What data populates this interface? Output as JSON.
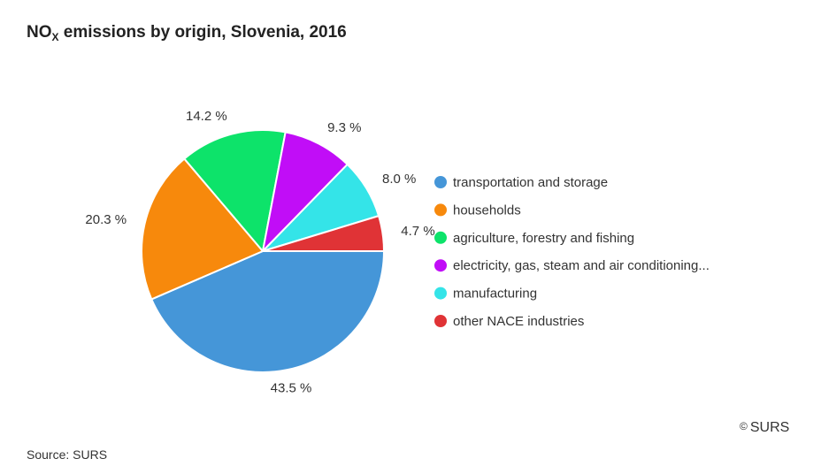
{
  "chart_data": {
    "type": "pie",
    "title": {
      "main": "NO",
      "sub": "X",
      "rest": " emissions by origin, Slovenia, 2016"
    },
    "slices": [
      {
        "label": "transportation and storage",
        "value": 43.5,
        "display": "43.5 %",
        "color": "#4596d8"
      },
      {
        "label": "households",
        "value": 20.3,
        "display": "20.3 %",
        "color": "#f7890c"
      },
      {
        "label": "agriculture, forestry and fishing",
        "value": 14.2,
        "display": "14.2 %",
        "color": "#0de36a"
      },
      {
        "label": "electricity, gas, steam and air conditioning...",
        "value": 9.3,
        "display": "9.3 %",
        "color": "#c10df7"
      },
      {
        "label": "manufacturing",
        "value": 8.0,
        "display": "8.0 %",
        "color": "#34e4e8"
      },
      {
        "label": "other NACE industries",
        "value": 4.7,
        "display": "4.7 %",
        "color": "#e03336"
      }
    ],
    "legend_position": "right"
  },
  "copyright": {
    "mark": "©",
    "text": "SURS"
  },
  "source": "Source: SURS"
}
